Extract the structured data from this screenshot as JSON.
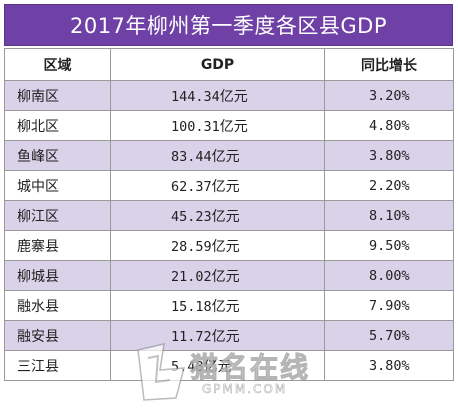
{
  "title": "2017年柳州第一季度各区县GDP",
  "table": {
    "headers": [
      "区域",
      "GDP",
      "同比增长"
    ],
    "gdp_unit": "亿元",
    "rows": [
      {
        "region": "柳南区",
        "gdp": "144.34",
        "growth": "3.20%"
      },
      {
        "region": "柳北区",
        "gdp": "100.31",
        "growth": "4.80%"
      },
      {
        "region": "鱼峰区",
        "gdp": "83.44",
        "growth": "3.80%"
      },
      {
        "region": "城中区",
        "gdp": "62.37",
        "growth": "2.20%"
      },
      {
        "region": "柳江区",
        "gdp": "45.23",
        "growth": "8.10%"
      },
      {
        "region": "鹿寨县",
        "gdp": "28.59",
        "growth": "9.50%"
      },
      {
        "region": "柳城县",
        "gdp": "21.02",
        "growth": "8.00%"
      },
      {
        "region": "融水县",
        "gdp": "15.18",
        "growth": "7.90%"
      },
      {
        "region": "融安县",
        "gdp": "11.72",
        "growth": "5.70%"
      },
      {
        "region": "三江县",
        "gdp": "5.48",
        "growth": "3.80%"
      }
    ]
  },
  "watermark": {
    "text": "猫名在线",
    "sub": "GPMM.COM"
  },
  "colors": {
    "title_bg": "#6f40a6",
    "shaded_row": "#d9d2e9"
  }
}
